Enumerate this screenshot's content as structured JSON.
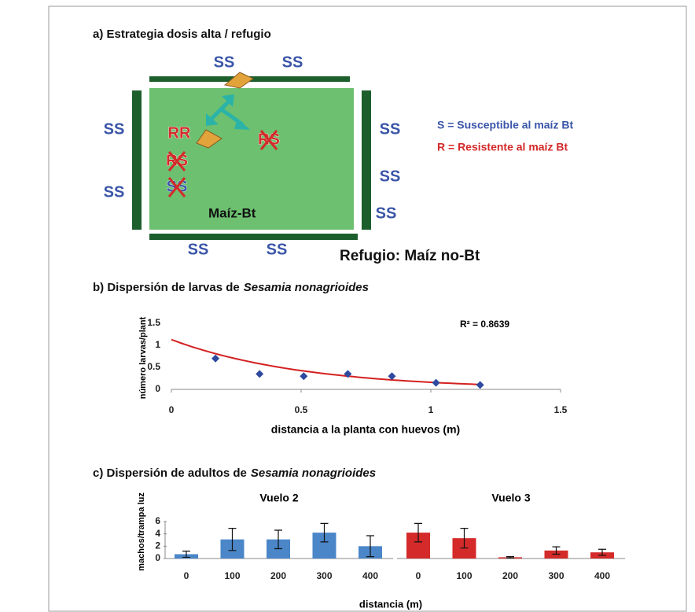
{
  "diagram": {
    "title": "a) Estrategia dosis alta / refugio",
    "field_label": "Maíz-Bt",
    "refuge_label": "Refugio: Maíz no-Bt",
    "refuge_genotypes": [
      "SS",
      "SS",
      "SS",
      "SS",
      "SS",
      "SS",
      "SS",
      "SS",
      "SS"
    ],
    "field_genotypes": [
      "RR",
      "RS",
      "RS",
      "SS"
    ],
    "legend": [
      "S = Susceptible al maíz Bt",
      "R = Resistente al maíz Bt"
    ]
  },
  "chart_data": [
    {
      "type": "scatter",
      "title": "b) Dispersión de larvas de",
      "title_species": "Sesamia nonagrioides",
      "xlabel": "distancia a la planta con huevos (m)",
      "ylabel": "número larvas/plant",
      "annotation": "R² = 0.8639",
      "x": [
        0.17,
        0.34,
        0.51,
        0.68,
        0.85,
        1.02,
        1.19
      ],
      "values": [
        0.7,
        0.35,
        0.3,
        0.35,
        0.3,
        0.15,
        0.1
      ],
      "color": "#2e4a9e",
      "trendline": {
        "type": "exponential",
        "a": 1.13,
        "b": -1.95,
        "color": "#d42020"
      },
      "xlim": [
        0,
        1.5
      ],
      "xticks": [
        0,
        0.5,
        1,
        1.5
      ],
      "ylim": [
        0,
        1.5
      ],
      "yticks": [
        0,
        0.5,
        1,
        1.5
      ]
    },
    {
      "type": "bar",
      "title": "c) Dispersión de adultos de",
      "title_species": "Sesamia nonagrioides",
      "subtitle": "Vuelo 2",
      "xlabel": "distancia (m)",
      "ylabel": "machos/trampa luz",
      "categories": [
        "0",
        "100",
        "200",
        "300",
        "400"
      ],
      "values": [
        0.7,
        3.1,
        3.1,
        4.2,
        2.0
      ],
      "errors": [
        0.5,
        1.8,
        1.5,
        1.5,
        1.7
      ],
      "color": "#4a86c8",
      "ylim": [
        0,
        6
      ],
      "yticks": [
        0,
        2,
        4,
        6
      ]
    },
    {
      "type": "bar",
      "subtitle": "Vuelo 3",
      "categories": [
        "0",
        "100",
        "200",
        "300",
        "400"
      ],
      "values": [
        4.2,
        3.3,
        0.2,
        1.3,
        1.0
      ],
      "errors": [
        1.5,
        1.6,
        0.1,
        0.6,
        0.5
      ],
      "color": "#d42a2a",
      "ylim": [
        0,
        6
      ]
    }
  ]
}
